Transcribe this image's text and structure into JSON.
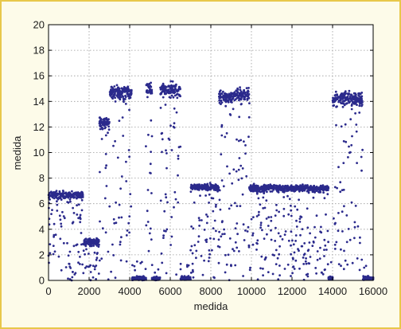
{
  "chart_data": {
    "type": "scatter",
    "title": "",
    "xlabel": "medida",
    "ylabel": "medida",
    "xlim": [
      0,
      16000
    ],
    "ylim": [
      0,
      20
    ],
    "xticks": [
      0,
      2000,
      4000,
      6000,
      8000,
      10000,
      12000,
      14000,
      16000
    ],
    "yticks": [
      0,
      2,
      4,
      6,
      8,
      10,
      12,
      14,
      16,
      18,
      20
    ],
    "grid": true,
    "marker_color": "#2b2a8c",
    "segments": [
      {
        "x_start": 0,
        "x_end": 1700,
        "level": 6.7
      },
      {
        "x_start": 1700,
        "x_end": 2500,
        "level": 3.0
      },
      {
        "x_start": 2500,
        "x_end": 3000,
        "level": 12.3
      },
      {
        "x_start": 3000,
        "x_end": 4100,
        "level": 14.7
      },
      {
        "x_start": 4100,
        "x_end": 4800,
        "level": 0.1
      },
      {
        "x_start": 4800,
        "x_end": 5100,
        "level": 15.0
      },
      {
        "x_start": 5100,
        "x_end": 5500,
        "level": 0.2
      },
      {
        "x_start": 5500,
        "x_end": 6500,
        "level": 14.9
      },
      {
        "x_start": 6500,
        "x_end": 7000,
        "level": 0.1
      },
      {
        "x_start": 7000,
        "x_end": 8400,
        "level": 7.3
      },
      {
        "x_start": 8400,
        "x_end": 9100,
        "level": 14.4
      },
      {
        "x_start": 9100,
        "x_end": 9900,
        "level": 14.5
      },
      {
        "x_start": 9900,
        "x_end": 13800,
        "level": 7.2
      },
      {
        "x_start": 13800,
        "x_end": 14000,
        "level": 0.3
      },
      {
        "x_start": 14000,
        "x_end": 15500,
        "level": 14.2
      },
      {
        "x_start": 15500,
        "x_end": 16000,
        "level": 0.1
      }
    ]
  }
}
